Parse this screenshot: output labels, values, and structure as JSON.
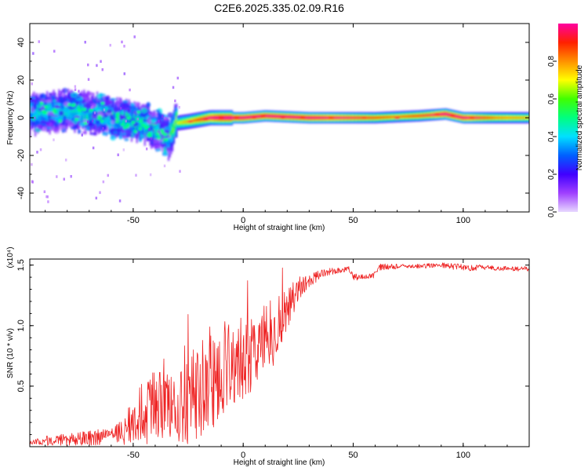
{
  "title": "C2E6.2025.335.02.09.R16",
  "chart_data": [
    {
      "type": "heatmap",
      "name": "spectrogram",
      "xlabel": "Height of straight line (km)",
      "ylabel": "Frequency (Hz)",
      "xlim": [
        -97,
        130
      ],
      "ylim": [
        -50,
        50
      ],
      "xticks": [
        -50,
        0,
        50,
        100
      ],
      "yticks": [
        -40,
        -20,
        0,
        20,
        40
      ],
      "colorbar": {
        "label": "Normalized spectral amplitude",
        "range": [
          0,
          1
        ],
        "ticks": [
          0.0,
          0.2,
          0.4,
          0.6,
          0.8
        ],
        "colormap": [
          "#e8d8ff",
          "#a040ff",
          "#4000ff",
          "#0060ff",
          "#00e0ff",
          "#00ff80",
          "#40ff00",
          "#ffff00",
          "#ff9000",
          "#ff2000",
          "#ff00a0"
        ]
      },
      "ridge": [
        {
          "x": -95,
          "f": 2
        },
        {
          "x": -80,
          "f": 4
        },
        {
          "x": -65,
          "f": 2
        },
        {
          "x": -55,
          "f": -1
        },
        {
          "x": -45,
          "f": -3
        },
        {
          "x": -38,
          "f": -7
        },
        {
          "x": -34,
          "f": -11
        },
        {
          "x": -31,
          "f": -3
        },
        {
          "x": -25,
          "f": -2
        },
        {
          "x": -15,
          "f": 0
        },
        {
          "x": 0,
          "f": 0
        },
        {
          "x": 10,
          "f": 1
        },
        {
          "x": 30,
          "f": 0
        },
        {
          "x": 60,
          "f": 0
        },
        {
          "x": 80,
          "f": 1
        },
        {
          "x": 92,
          "f": 2
        },
        {
          "x": 100,
          "f": 0
        },
        {
          "x": 130,
          "f": 0
        }
      ],
      "ridge_amplitude": [
        {
          "x": -97,
          "a": 0.35
        },
        {
          "x": -35,
          "a": 0.4
        },
        {
          "x": -30,
          "a": 0.55
        },
        {
          "x": -20,
          "a": 0.75
        },
        {
          "x": -10,
          "a": 0.95
        },
        {
          "x": 30,
          "a": 0.92
        },
        {
          "x": 70,
          "a": 0.7
        },
        {
          "x": 85,
          "a": 0.8
        },
        {
          "x": 92,
          "a": 0.95
        },
        {
          "x": 100,
          "a": 0.9
        },
        {
          "x": 115,
          "a": 0.7
        },
        {
          "x": 130,
          "a": 0.65
        }
      ]
    },
    {
      "type": "line",
      "name": "snr",
      "xlabel": "Height of straight line (km)",
      "ylabel": "SNR (10 * v/v)",
      "y_multiplier": "(x10⁴)",
      "xlim": [
        -97,
        130
      ],
      "ylim": [
        0,
        1.55
      ],
      "xticks": [
        -50,
        0,
        50,
        100
      ],
      "yticks": [
        0.5,
        1.0,
        1.5
      ],
      "color": "#ee2222",
      "series": [
        {
          "name": "SNR envelope (x10^4)",
          "x": [
            -97,
            -90,
            -80,
            -70,
            -60,
            -55,
            -50,
            -45,
            -40,
            -35,
            -30,
            -25,
            -20,
            -15,
            -10,
            -5,
            0,
            5,
            10,
            15,
            20,
            25,
            30,
            35,
            40,
            45,
            48,
            50,
            55,
            60,
            62,
            70,
            80,
            90,
            100,
            110,
            120,
            130
          ],
          "mean": [
            0.03,
            0.05,
            0.06,
            0.07,
            0.09,
            0.12,
            0.2,
            0.3,
            0.35,
            0.32,
            0.28,
            0.4,
            0.5,
            0.55,
            0.65,
            0.7,
            0.7,
            0.78,
            0.88,
            0.97,
            1.15,
            1.3,
            1.38,
            1.42,
            1.45,
            1.46,
            1.47,
            1.4,
            1.4,
            1.42,
            1.48,
            1.49,
            1.49,
            1.5,
            1.48,
            1.48,
            1.47,
            1.47
          ],
          "spread": [
            0.02,
            0.04,
            0.05,
            0.06,
            0.07,
            0.1,
            0.22,
            0.3,
            0.3,
            0.28,
            0.28,
            0.38,
            0.42,
            0.45,
            0.4,
            0.35,
            0.32,
            0.32,
            0.32,
            0.28,
            0.18,
            0.1,
            0.06,
            0.04,
            0.03,
            0.02,
            0.02,
            0.03,
            0.02,
            0.03,
            0.03,
            0.02,
            0.02,
            0.02,
            0.03,
            0.02,
            0.02,
            0.02
          ]
        }
      ]
    }
  ]
}
